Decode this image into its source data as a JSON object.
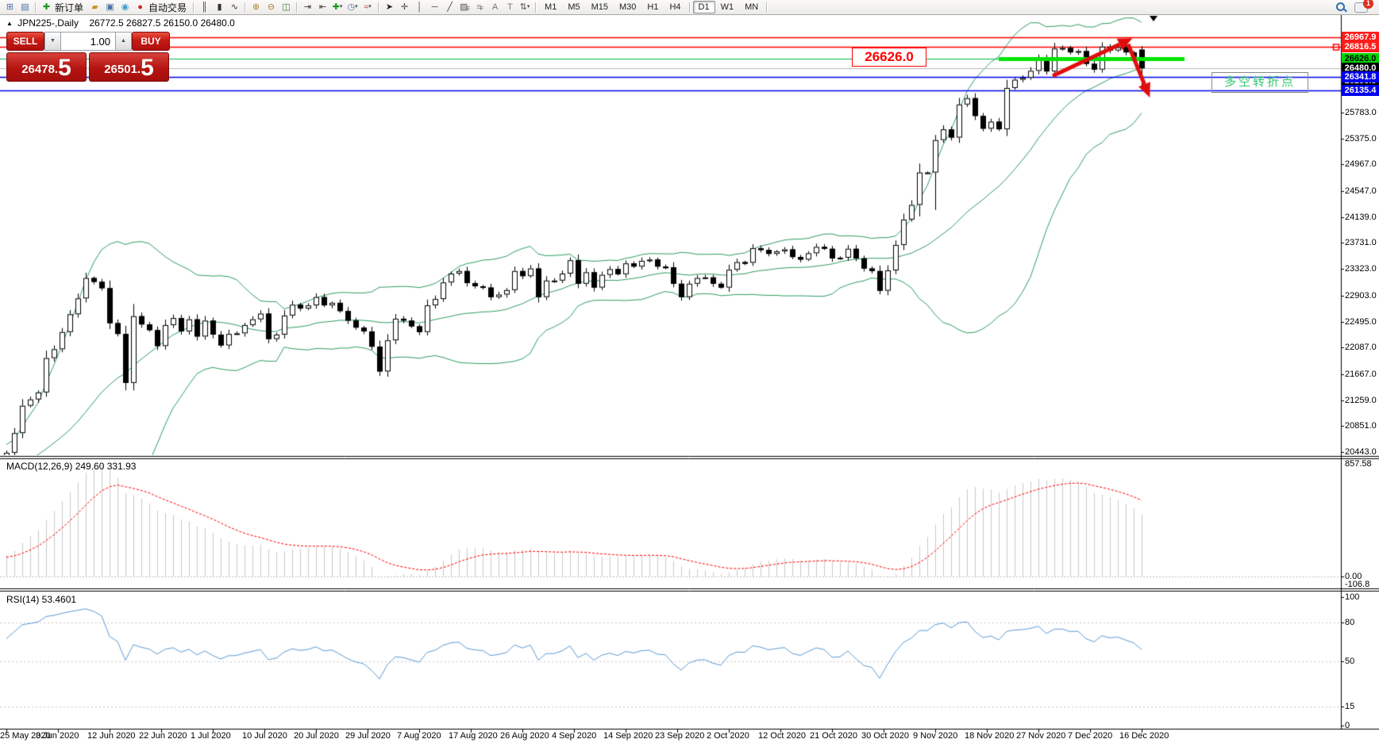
{
  "toolbar": {
    "items": [
      {
        "t": "icon",
        "name": "new-chart-window-icon",
        "g": "⊞",
        "c": "#4a6fa5"
      },
      {
        "t": "icon",
        "name": "market-watch-icon",
        "g": "▤",
        "c": "#4a6fa5"
      },
      {
        "t": "sep"
      },
      {
        "t": "icon",
        "name": "new-order-icon",
        "g": "✚",
        "c": "#189818",
        "label": "新订单"
      },
      {
        "t": "icon",
        "name": "trade-history-icon",
        "g": "▰",
        "c": "#c8922a"
      },
      {
        "t": "icon",
        "name": "expert-advisors-icon",
        "g": "▣",
        "c": "#4a6fa5"
      },
      {
        "t": "icon",
        "name": "signals-icon",
        "g": "◉",
        "c": "#3f9bce"
      },
      {
        "t": "icon",
        "name": "autotrading-icon",
        "g": "●",
        "c": "#cc2222",
        "label": "自动交易"
      },
      {
        "t": "sep"
      },
      {
        "t": "icon",
        "name": "bar-chart-icon",
        "g": "║",
        "c": "#333333"
      },
      {
        "t": "icon",
        "name": "candlestick-chart-icon",
        "g": "▮",
        "c": "#333333"
      },
      {
        "t": "icon",
        "name": "line-chart-icon",
        "g": "∿",
        "c": "#333333"
      },
      {
        "t": "sep"
      },
      {
        "t": "icon",
        "name": "zoom-in-icon",
        "g": "⊕",
        "c": "#b08030"
      },
      {
        "t": "icon",
        "name": "zoom-out-icon",
        "g": "⊖",
        "c": "#b08030"
      },
      {
        "t": "icon",
        "name": "tile-windows-icon",
        "g": "◫",
        "c": "#3f7f3f"
      },
      {
        "t": "sep"
      },
      {
        "t": "icon",
        "name": "auto-scroll-icon",
        "g": "⇥",
        "c": "#333333"
      },
      {
        "t": "icon",
        "name": "chart-shift-icon",
        "g": "⇤",
        "c": "#333333"
      },
      {
        "t": "icon",
        "name": "add-chart-icon",
        "g": "✚",
        "c": "#189818",
        "dd": true
      },
      {
        "t": "icon",
        "name": "periods-icon",
        "g": "◷",
        "c": "#4a6fa5",
        "dd": true
      },
      {
        "t": "icon",
        "name": "indicators-icon",
        "g": "≈",
        "c": "#cc4444",
        "dd": true
      },
      {
        "t": "sep"
      },
      {
        "t": "icon",
        "name": "cursor-icon",
        "g": "➤",
        "c": "#222222"
      },
      {
        "t": "icon",
        "name": "crosshair-icon",
        "g": "✛",
        "c": "#444444"
      },
      {
        "t": "icon",
        "name": "vertical-line-icon",
        "g": "│",
        "c": "#444444"
      },
      {
        "t": "icon",
        "name": "horizontal-line-icon",
        "g": "─",
        "c": "#444444"
      },
      {
        "t": "icon",
        "name": "trendline-icon",
        "g": "╱",
        "c": "#444444"
      },
      {
        "t": "icon",
        "name": "equidistant-channel-icon",
        "g": "▨",
        "c": "#555555",
        "sub": "E"
      },
      {
        "t": "icon",
        "name": "fibonacci-icon",
        "g": "≡",
        "c": "#888888",
        "sub": "F"
      },
      {
        "t": "icon",
        "name": "text-icon",
        "g": "A",
        "c": "#777777"
      },
      {
        "t": "icon",
        "name": "text-label-icon",
        "g": "T",
        "c": "#777777"
      },
      {
        "t": "icon",
        "name": "arrows-icon",
        "g": "⇅",
        "c": "#555555",
        "dd": true
      },
      {
        "t": "sep"
      }
    ],
    "timeframes": [
      "M1",
      "M5",
      "M15",
      "M30",
      "H1",
      "H4",
      "D1",
      "W1",
      "MN"
    ],
    "active_timeframe": "D1",
    "chat_badge": "1"
  },
  "chart": {
    "title_symbol": "JPN225-,Daily",
    "title_ohlc": "26772.5 26827.5 26150.0 26480.0"
  },
  "trade": {
    "sell_label": "SELL",
    "buy_label": "BUY",
    "volume": "1.00",
    "sell_price": {
      "main": "26478.",
      "big": "5"
    },
    "buy_price": {
      "main": "26501.",
      "big": "5"
    }
  },
  "indicators": {
    "macd_label": "MACD(12,26,9) 249.60 331.93",
    "rsi_label": "RSI(14) 53.4601"
  },
  "chart_data": {
    "type": "candlestick",
    "symbol": "JPN225-",
    "timeframe": "Daily",
    "ohlc_last": {
      "open": 26772.5,
      "high": 26827.5,
      "low": 26150.0,
      "close": 26480.0
    },
    "y_price_ticks": [
      "25783.0",
      "25375.0",
      "24967.0",
      "24547.0",
      "24139.0",
      "23731.0",
      "23323.0",
      "22903.0",
      "22495.0",
      "22087.0",
      "21667.0",
      "21259.0",
      "20851.0",
      "20443.0"
    ],
    "special_price_labels": [
      {
        "text": "26283.8",
        "price": 26283.8,
        "bg": "#000000",
        "fg": "#ffffff"
      },
      {
        "text": "26967.9",
        "price": 26967.9,
        "bg": "#ff1c1c",
        "fg": "#ffffff"
      },
      {
        "text": "26816.5",
        "price": 26816.5,
        "bg": "#ff1c1c",
        "fg": "#ffffff"
      },
      {
        "text": "26626.0",
        "price": 26626.0,
        "bg": "#00d400",
        "fg": "#000000"
      },
      {
        "text": "26480.0",
        "price": 26480.0,
        "bg": "#000000",
        "fg": "#ffffff"
      },
      {
        "text": "26341.8",
        "price": 26341.8,
        "bg": "#0000ee",
        "fg": "#ffffff"
      },
      {
        "text": "26135.4",
        "price": 26135.4,
        "bg": "#0000ee",
        "fg": "#ffffff"
      }
    ],
    "horizontal_lines": [
      {
        "price": 26967.9,
        "color": "#ff0000",
        "width": 1.5
      },
      {
        "price": 26816.5,
        "color": "#ff0000",
        "width": 1.5,
        "handle": true
      },
      {
        "price": 26626.0,
        "color": "#00b44c",
        "width": 1,
        "x_idx_end": 148.4
      },
      {
        "price": 26480.0,
        "color": "#b8b8b8",
        "width": 1
      },
      {
        "price": 26341.8,
        "color": "#0000f0",
        "width": 1.5
      },
      {
        "price": 26135.4,
        "color": "#0000f0",
        "width": 1.5
      }
    ],
    "x_date_labels": [
      "25 May 2020",
      "3 Jun 2020",
      "12 Jun 2020",
      "22 Jun 2020",
      "1 Jul 2020",
      "10 Jul 2020",
      "20 Jul 2020",
      "29 Jul 2020",
      "7 Aug 2020",
      "17 Aug 2020",
      "26 Aug 2020",
      "4 Sep 2020",
      "14 Sep 2020",
      "23 Sep 2020",
      "2 Oct 2020",
      "12 Oct 2020",
      "21 Oct 2020",
      "30 Oct 2020",
      "9 Nov 2020",
      "18 Nov 2020",
      "27 Nov 2020",
      "7 Dec 2020",
      "16 Dec 2020"
    ],
    "closes_prehistory": [
      19620,
      19700,
      19770,
      19870,
      19900,
      20180,
      20130,
      20370,
      20390,
      20270,
      20200,
      20040,
      19910,
      20150,
      20130,
      20040,
      20220,
      20390,
      20380,
      20260
    ],
    "closes": [
      20430,
      20740,
      21170,
      21270,
      21380,
      21920,
      22060,
      22330,
      22610,
      22860,
      23180,
      23120,
      23020,
      22470,
      22300,
      21530,
      22580,
      22450,
      22360,
      22110,
      22440,
      22550,
      22340,
      22530,
      22260,
      22510,
      22290,
      22120,
      22300,
      22310,
      22440,
      22530,
      22620,
      22220,
      22290,
      22590,
      22760,
      22700,
      22750,
      22880,
      22750,
      22790,
      22660,
      22510,
      22400,
      22340,
      22100,
      21710,
      22200,
      22540,
      22510,
      22420,
      22330,
      22750,
      22850,
      23110,
      23250,
      23290,
      23100,
      23050,
      23030,
      22880,
      22920,
      22990,
      23290,
      23210,
      23330,
      22880,
      23140,
      23140,
      23250,
      23460,
      23090,
      23270,
      23030,
      23230,
      23320,
      23240,
      23410,
      23360,
      23450,
      23470,
      23360,
      23350,
      23090,
      22880,
      23090,
      23180,
      23190,
      23090,
      23030,
      23310,
      23430,
      23420,
      23650,
      23620,
      23560,
      23600,
      23630,
      23510,
      23470,
      23570,
      23670,
      23640,
      23490,
      23500,
      23640,
      23490,
      23330,
      23290,
      22980,
      23300,
      23700,
      24100,
      24330,
      24840,
      24840,
      25350,
      25520,
      25390,
      25910,
      26010,
      25730,
      25530,
      25640,
      25520,
      26170,
      26300,
      26330,
      26440,
      26640,
      26430,
      26790,
      26800,
      26730,
      26750,
      26550,
      26460,
      26820,
      26760,
      26810,
      26730,
      26660,
      26480
    ],
    "wick_overrides": {
      "115": {
        "high": 24980,
        "low": 24150
      },
      "117": {
        "high": 25430,
        "low": 24250
      }
    },
    "indicator_settings": {
      "bollinger": {
        "period": 20,
        "deviation": 2,
        "color": "#2f9e63"
      },
      "macd": {
        "fast": 12,
        "slow": 26,
        "signal": 9,
        "current_main": "249.60",
        "current_signal": "331.93",
        "axis_labels": [
          "857.58",
          "0.00",
          "-106.8"
        ],
        "axis_max": 857.58,
        "axis_min": -106.8
      },
      "rsi": {
        "period": 14,
        "current": "53.4601",
        "axis_ticks": [
          "100",
          "80",
          "50",
          "15",
          "0"
        ],
        "levels": [
          80,
          50,
          15
        ],
        "color": "#5b9bd5"
      }
    },
    "annotations": {
      "price_callout": {
        "text": "26626.0"
      },
      "turn_point_label": {
        "text": "多空转折点"
      },
      "highlight_line": {
        "price": 26626.0,
        "x_idx_start": 125,
        "x_idx_end": 148.4,
        "color": "#00e400"
      },
      "trend_arrows": [
        {
          "x_idx1": 131.8,
          "price1": 26360,
          "x_idx2": 141.3,
          "price2": 26920
        },
        {
          "x_idx1": 141.3,
          "price1": 26860,
          "x_idx2": 143.8,
          "price2": 26090
        }
      ]
    }
  }
}
